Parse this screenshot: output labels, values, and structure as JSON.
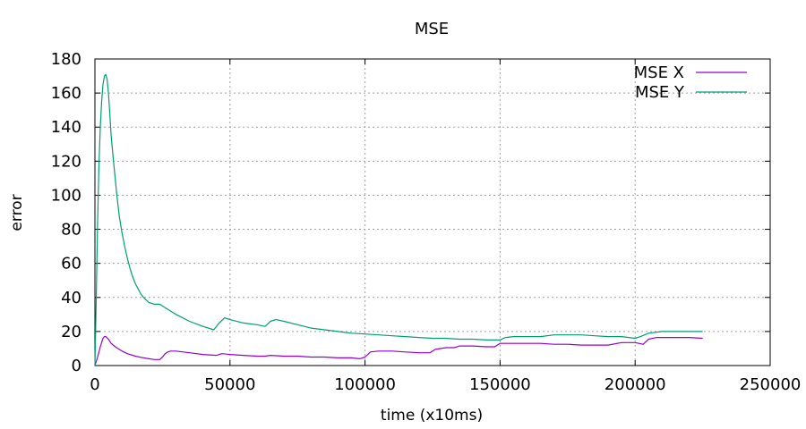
{
  "chart_data": {
    "type": "line",
    "title": "MSE",
    "xlabel": "time (x10ms)",
    "ylabel": "error",
    "xlim": [
      0,
      250000
    ],
    "ylim": [
      0,
      180
    ],
    "xticks": [
      0,
      50000,
      100000,
      150000,
      200000,
      250000
    ],
    "xtick_labels": [
      "0",
      "50000",
      "100000",
      "150000",
      "200000",
      "250000"
    ],
    "yticks": [
      0,
      20,
      40,
      60,
      80,
      100,
      120,
      140,
      160,
      180
    ],
    "ytick_labels": [
      "0",
      "20",
      "40",
      "60",
      "80",
      "100",
      "120",
      "140",
      "160",
      "180"
    ],
    "grid": true,
    "legend_position": "top-right",
    "series": [
      {
        "name": "MSE X",
        "color": "#9400d3",
        "x": [
          0,
          1000,
          2000,
          3000,
          3500,
          4000,
          5000,
          6000,
          8000,
          10000,
          12000,
          15000,
          18000,
          20000,
          22000,
          24000,
          25000,
          26000,
          27000,
          28000,
          30000,
          35000,
          40000,
          45000,
          47000,
          50000,
          55000,
          60000,
          63000,
          65000,
          70000,
          75000,
          80000,
          85000,
          90000,
          95000,
          98000,
          100000,
          102000,
          105000,
          110000,
          115000,
          120000,
          124000,
          126000,
          130000,
          133000,
          135000,
          140000,
          145000,
          148000,
          150000,
          155000,
          160000,
          165000,
          170000,
          175000,
          180000,
          185000,
          190000,
          195000,
          200000,
          203000,
          205000,
          208000,
          210000,
          215000,
          220000,
          225000
        ],
        "y": [
          0,
          5,
          11,
          16,
          17,
          17,
          15.5,
          13,
          10.5,
          8.5,
          7,
          5.5,
          4.5,
          4,
          3.5,
          3.5,
          5,
          7,
          8,
          8.5,
          8.5,
          7.5,
          6.5,
          6,
          7,
          6.5,
          6,
          5.5,
          5.5,
          6,
          5.5,
          5.5,
          5,
          5,
          4.5,
          4.5,
          4,
          5,
          8,
          8.5,
          8.5,
          8,
          7.5,
          7.5,
          9.5,
          10.5,
          10.5,
          11.5,
          11.5,
          11,
          11,
          13,
          13,
          13,
          13,
          12.5,
          12.5,
          12,
          12,
          12,
          13.5,
          13.5,
          12.5,
          15.5,
          16.5,
          16.5,
          16.5,
          16.5,
          16
        ]
      },
      {
        "name": "MSE Y",
        "color": "#009e73",
        "x": [
          0,
          500,
          1000,
          1500,
          2000,
          2500,
          3000,
          3500,
          4000,
          4500,
          5000,
          5500,
          6000,
          7000,
          8000,
          9000,
          10000,
          11000,
          12000,
          13000,
          14000,
          15000,
          16000,
          17000,
          18000,
          20000,
          22000,
          24000,
          26000,
          28000,
          30000,
          35000,
          40000,
          44000,
          46000,
          48000,
          50000,
          55000,
          60000,
          63000,
          65000,
          67000,
          70000,
          75000,
          80000,
          85000,
          90000,
          95000,
          100000,
          105000,
          110000,
          115000,
          120000,
          125000,
          130000,
          135000,
          140000,
          145000,
          150000,
          152000,
          155000,
          160000,
          165000,
          170000,
          175000,
          180000,
          185000,
          190000,
          195000,
          200000,
          202000,
          205000,
          210000,
          215000,
          220000,
          225000
        ],
        "y": [
          0,
          40,
          85,
          118,
          140,
          155,
          165,
          170,
          171,
          168,
          160,
          148,
          135,
          118,
          102,
          88,
          78,
          70,
          63,
          57,
          52,
          48,
          45,
          42,
          40,
          37,
          36,
          36,
          34,
          32,
          30,
          26,
          23,
          21,
          25,
          28,
          27,
          25,
          24,
          23,
          26,
          27,
          26,
          24,
          22,
          21,
          20,
          19,
          18.5,
          18,
          17.5,
          17,
          16.5,
          16,
          16,
          15.5,
          15.5,
          15,
          15,
          16.5,
          17,
          17,
          17,
          18,
          18,
          18,
          17.5,
          17,
          17,
          16,
          17,
          19,
          20,
          20,
          20,
          20
        ]
      }
    ]
  }
}
